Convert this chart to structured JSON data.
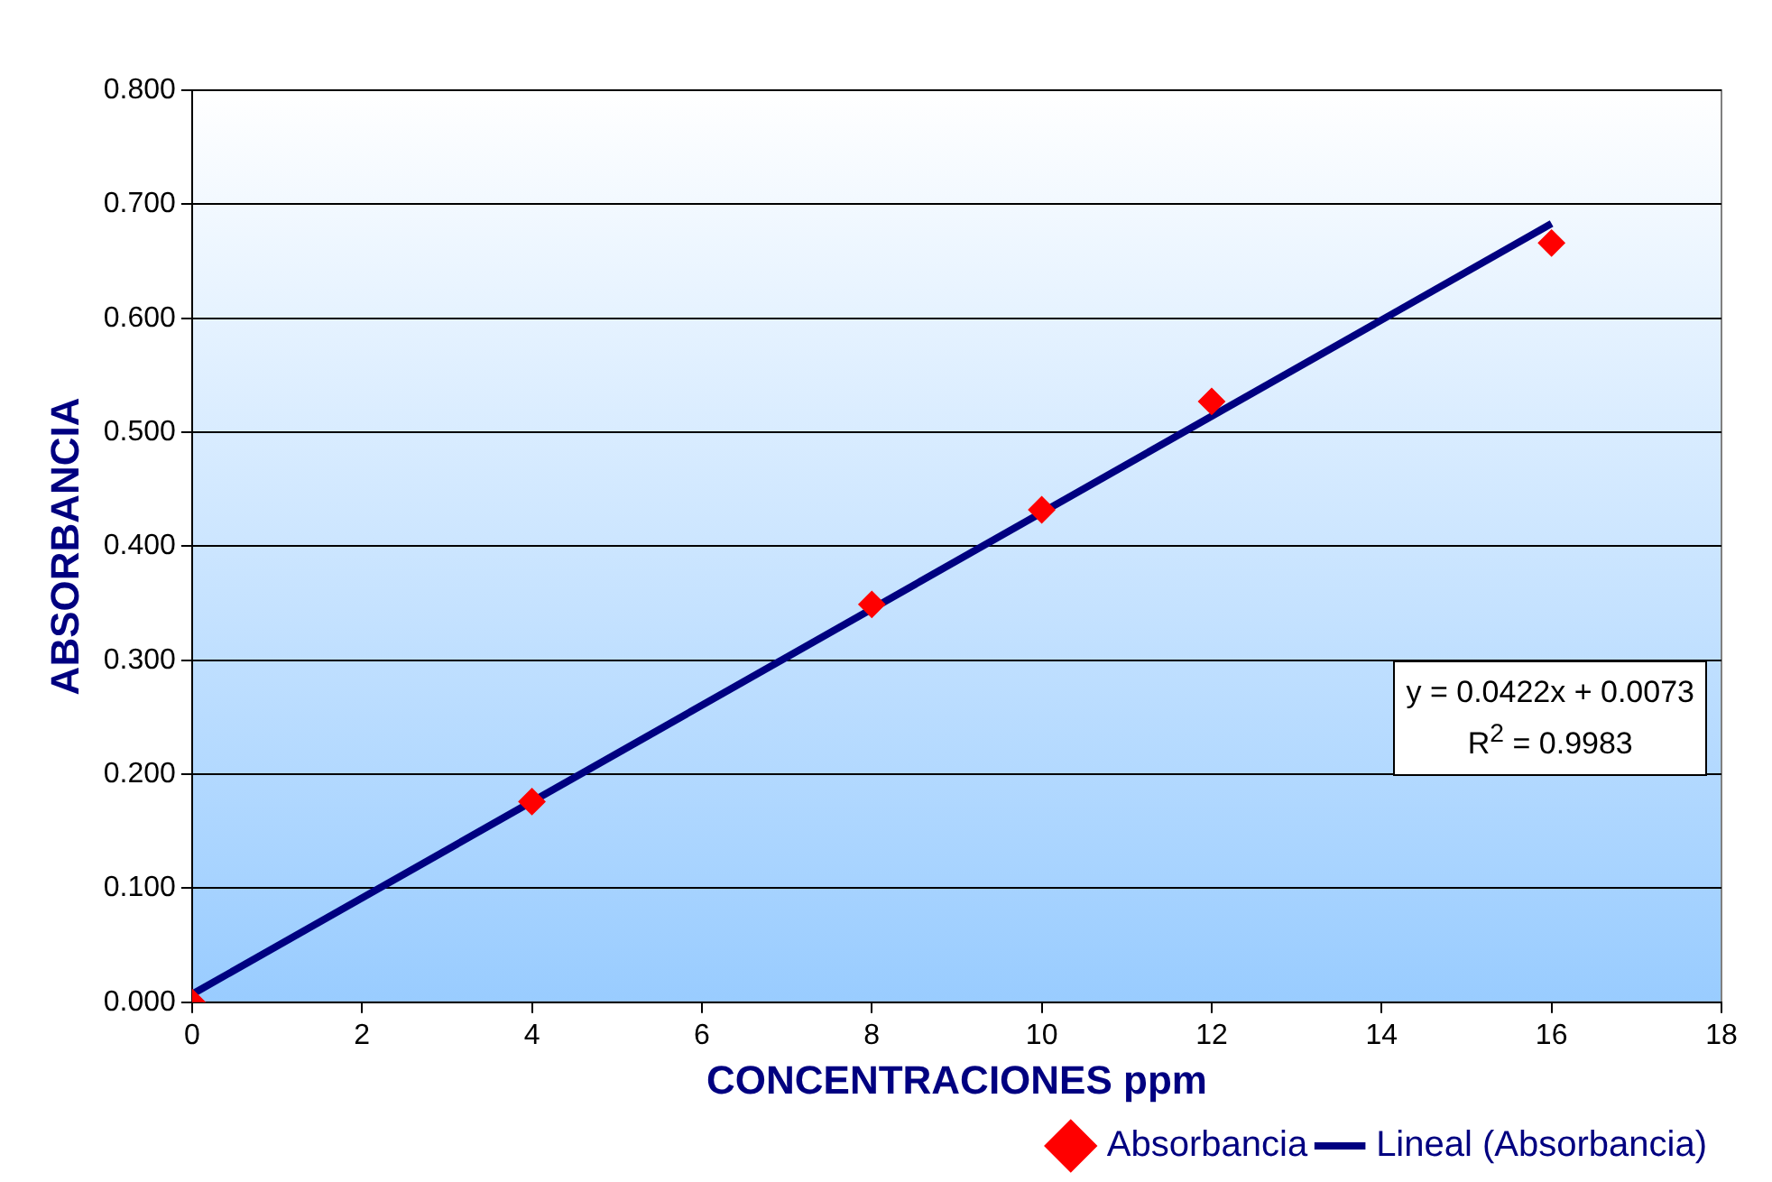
{
  "chart_data": {
    "type": "scatter",
    "xlabel": "CONCENTRACIONES ppm",
    "ylabel": "ABSORBANCIA",
    "series": [
      {
        "name": "Absorbancia",
        "color": "#ff0000",
        "marker": "diamond",
        "x": [
          0,
          4,
          8,
          10,
          12,
          16
        ],
        "values": [
          0,
          0.176,
          0.349,
          0.432,
          0.527,
          0.666
        ]
      },
      {
        "name": "Lineal (Absorbancia)",
        "type": "line",
        "color": "#000080",
        "marker": "none",
        "line_style": "solid",
        "x": [
          0,
          16
        ],
        "values": [
          0.007,
          0.683
        ]
      }
    ],
    "xlim": [
      0,
      18
    ],
    "xticks": [
      0,
      2,
      4,
      6,
      8,
      10,
      12,
      14,
      16,
      18
    ],
    "ylim": [
      0,
      0.8
    ],
    "yticks": [
      {
        "value": 0,
        "label": "0.000"
      },
      {
        "value": 0.1,
        "label": "0.100"
      },
      {
        "value": 0.2,
        "label": "0.200"
      },
      {
        "value": 0.3,
        "label": "0.300"
      },
      {
        "value": 0.4,
        "label": "0.400"
      },
      {
        "value": 0.5,
        "label": "0.500"
      },
      {
        "value": 0.6,
        "label": "0.600"
      },
      {
        "value": 0.7,
        "label": "0.700"
      },
      {
        "value": 0.8,
        "label": "0.800"
      }
    ],
    "grid": "y",
    "legend": "bottom right",
    "annotations": [
      "y = 0.0422x + 0.0073",
      "R$^{2}$ = 0.9983"
    ]
  }
}
